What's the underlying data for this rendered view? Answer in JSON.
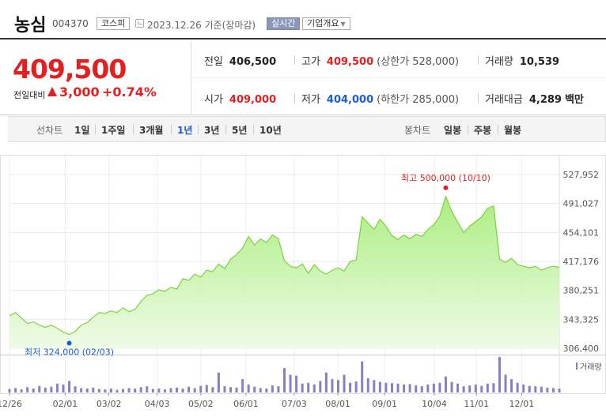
{
  "header": {
    "stock_name": "농심",
    "stock_code": "004370",
    "market_badge": "코스피",
    "date_text": "2023.12.26  기준(장마감)",
    "realtime_badge": "실시간",
    "company_button": "기업개요"
  },
  "summary": {
    "price": "409,500",
    "change_label": "전일대비",
    "change_value": "3,000",
    "change_pct": "+0.74%",
    "prev_close_label": "전일",
    "prev_close": "406,500",
    "high_label": "고가",
    "high": "409,500",
    "upper_limit": "(상한가 528,000)",
    "volume_label": "거래량",
    "volume": "10,539",
    "open_label": "시가",
    "open": "409,000",
    "low_label": "저가",
    "low": "404,000",
    "lower_limit": "(하한가 285,000)",
    "amount_label": "거래대금",
    "amount": "4,289",
    "amount_unit": "백만"
  },
  "period_bar": {
    "line_title": "선차트",
    "line_items": [
      "1일",
      "1주일",
      "3개월",
      "1년",
      "3년",
      "5년",
      "10년"
    ],
    "active": "1년",
    "candle_title": "봉차트",
    "candle_items": [
      "일봉",
      "주봉",
      "월봉"
    ]
  },
  "colors": {
    "up": "#e41f1f",
    "down": "#1a5bd6",
    "area_line": "#7ad33a",
    "volume": "#8c7ec2"
  },
  "chart_data": {
    "type": "area",
    "x_start": "2022-12-26",
    "x_end": "2023-12-26",
    "x_tick_labels": [
      "12/26",
      "02/01",
      "03/02",
      "04/03",
      "05/02",
      "06/01",
      "07/03",
      "08/01",
      "09/01",
      "10/04",
      "11/01",
      "12/01"
    ],
    "y_tick_labels": [
      "527,952",
      "491,027",
      "454,101",
      "417,176",
      "380,251",
      "343,325",
      "306,400"
    ],
    "ylim": [
      306400,
      527952
    ],
    "grid": true,
    "high_annotation": "최고 500,000 (10/10)",
    "low_annotation": "최저 324,000 (02/03)",
    "volume_legend": "거래량",
    "series": [
      {
        "values": [
          348000,
          352000,
          345000,
          338000,
          340000,
          336000,
          333000,
          336000,
          332000,
          327000,
          324000,
          328000,
          336000,
          339000,
          346000,
          352000,
          351000,
          354000,
          352000,
          358000,
          353000,
          356000,
          366000,
          374000,
          376000,
          381000,
          379000,
          384000,
          382000,
          395000,
          393000,
          401000,
          397000,
          406000,
          404000,
          414000,
          408000,
          420000,
          426000,
          434000,
          449000,
          438000,
          446000,
          441000,
          451000,
          446000,
          418000,
          411000,
          409000,
          414000,
          402000,
          413000,
          405000,
          401000,
          406000,
          409000,
          405000,
          417000,
          419000,
          474000,
          466000,
          458000,
          471000,
          462000,
          450000,
          445000,
          451000,
          446000,
          452000,
          449000,
          458000,
          464000,
          475000,
          500000,
          481000,
          467000,
          454000,
          462000,
          468000,
          474000,
          485000,
          488000,
          420000,
          416000,
          421000,
          413000,
          411000,
          409000,
          411000,
          406000,
          409000,
          411000,
          409500
        ]
      }
    ],
    "volume_values": [
      8,
      10,
      7,
      12,
      9,
      15,
      11,
      13,
      20,
      18,
      26,
      14,
      10,
      9,
      11,
      8,
      7,
      9,
      6,
      8,
      10,
      9,
      12,
      14,
      8,
      9,
      7,
      10,
      11,
      9,
      13,
      10,
      15,
      17,
      12,
      45,
      14,
      12,
      11,
      30,
      18,
      13,
      10,
      9,
      16,
      14,
      55,
      40,
      38,
      20,
      22,
      18,
      26,
      45,
      30,
      28,
      40,
      22,
      25,
      70,
      32,
      28,
      24,
      22,
      21,
      20,
      18,
      19,
      16,
      14,
      18,
      20,
      22,
      36,
      24,
      20,
      14,
      16,
      18,
      15,
      20,
      21,
      80,
      40,
      30,
      22,
      18,
      15,
      14,
      13,
      11,
      10,
      9
    ]
  }
}
